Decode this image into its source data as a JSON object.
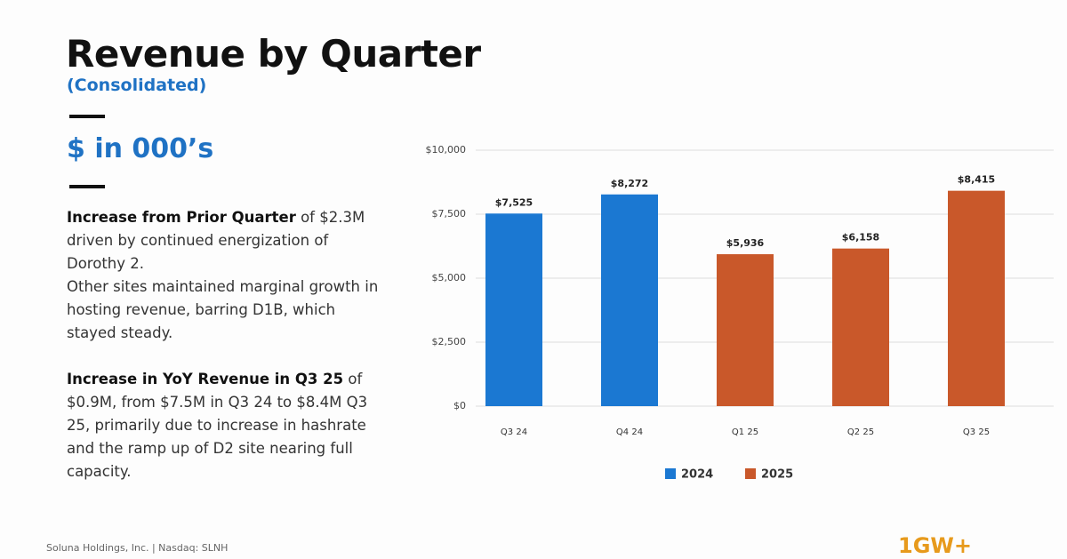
{
  "slide": {
    "title": "Revenue by Quarter",
    "subtitle": "(Consolidated)",
    "unit": "$ in 000’s",
    "paragraphs": [
      {
        "bold": "Increase from Prior Quarter",
        "text": " of $2.3M driven by continued energization of Dorothy 2."
      },
      {
        "bold": null,
        "text": "Other sites maintained marginal growth in hosting revenue, barring D1B, which stayed steady."
      },
      {
        "bold": "Increase in YoY Revenue in Q3 25",
        "text": " of $0.9M, from $7.5M in Q3 24 to $8.4M Q3 25, primarily due to increase in hashrate and the ramp up of D2 site nearing full capacity."
      }
    ],
    "footer": "Soluna Holdings, Inc. | Nasdaq: SLNH",
    "logo": "1GW+"
  },
  "chart_data": {
    "type": "bar",
    "categories": [
      "Q3 24",
      "Q4 24",
      "Q1 25",
      "Q2 25",
      "Q3 25"
    ],
    "series": [
      {
        "name": "2024",
        "color": "#1b78d2",
        "values": [
          7525,
          8272,
          null,
          null,
          null
        ],
        "value_labels": [
          "$7,525",
          "$8,272",
          null,
          null,
          null
        ]
      },
      {
        "name": "2025",
        "color": "#c9582a",
        "values": [
          null,
          null,
          5936,
          6158,
          8415
        ],
        "value_labels": [
          null,
          null,
          "$5,936",
          "$6,158",
          "$8,415"
        ]
      }
    ],
    "ylim": [
      0,
      10000
    ],
    "yticks": [
      {
        "value": 0,
        "label": "$0"
      },
      {
        "value": 2500,
        "label": "$2,500"
      },
      {
        "value": 5000,
        "label": "$5,000"
      },
      {
        "value": 7500,
        "label": "$7,500"
      },
      {
        "value": 10000,
        "label": "$10,000"
      }
    ],
    "grid": true,
    "legend": "bottom"
  }
}
